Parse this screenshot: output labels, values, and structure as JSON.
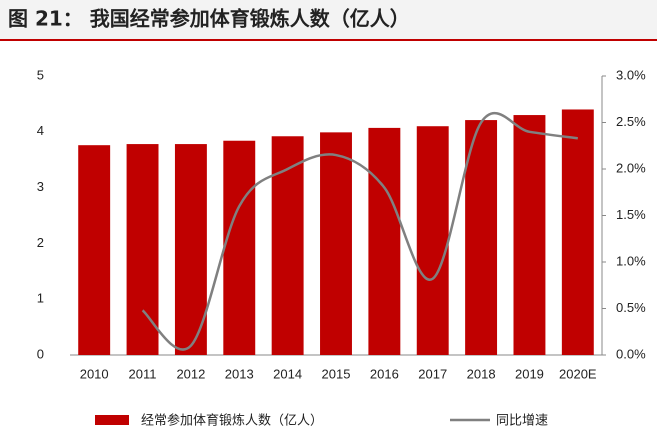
{
  "chart_data": {
    "type": "bar-line",
    "title": "图 21： 我国经常参加体育锻炼人数（亿人）",
    "categories": [
      "2010",
      "2011",
      "2012",
      "2013",
      "2014",
      "2015",
      "2016",
      "2017",
      "2018",
      "2019",
      "2020E"
    ],
    "series": [
      {
        "name": "经常参加体育锻炼人数（亿人）",
        "type": "bar",
        "color": "#c00000",
        "values": [
          3.76,
          3.78,
          3.78,
          3.84,
          3.92,
          3.99,
          4.07,
          4.1,
          4.21,
          4.3,
          4.4
        ]
      },
      {
        "name": "同比增速",
        "type": "line",
        "axis": "y2",
        "color": "#808080",
        "values": [
          null,
          0.48,
          0.1,
          1.6,
          2.0,
          2.15,
          1.8,
          0.82,
          2.5,
          2.4,
          2.33
        ]
      }
    ],
    "ylim": [
      0,
      5
    ],
    "yticks": [
      0,
      1,
      2,
      3,
      4,
      5
    ],
    "y2lim": [
      0,
      3
    ],
    "y2ticks": [
      {
        "value": 0,
        "label": "0.0%"
      },
      {
        "value": 0.5,
        "label": "0.5%"
      },
      {
        "value": 1,
        "label": "1.0%"
      },
      {
        "value": 1.5,
        "label": "1.5%"
      },
      {
        "value": 2,
        "label": "2.0%"
      },
      {
        "value": 2.5,
        "label": "2.5%"
      },
      {
        "value": 3,
        "label": "3.0%"
      }
    ]
  }
}
